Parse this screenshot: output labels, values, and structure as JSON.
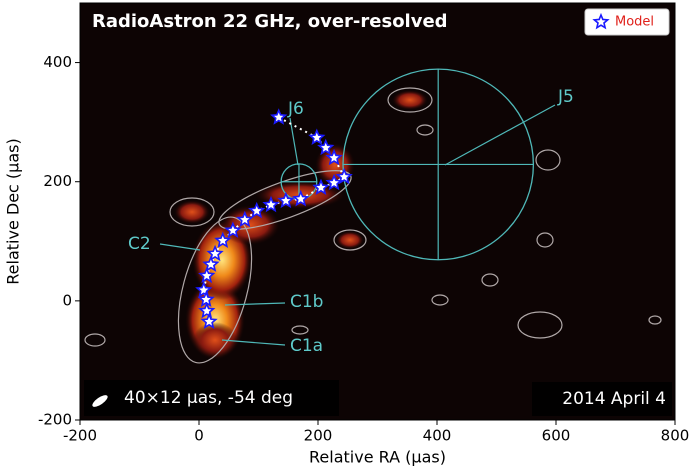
{
  "chart_data": {
    "type": "scatter",
    "title": "RadioAstron 22 GHz, over-resolved",
    "x_label": "Relative RA (μas)",
    "y_label": "Relative Dec (μas)",
    "beam_label": "40×12 μas, -54 deg",
    "date_label": "2014 April 4",
    "xlim": [
      -200,
      800
    ],
    "ylim": [
      -200,
      500
    ],
    "xticks": [
      -200,
      0,
      200,
      400,
      600,
      800
    ],
    "yticks": [
      -200,
      0,
      200,
      400
    ],
    "legend": "upper right",
    "series": [
      {
        "name": "Model",
        "color": "#1a1aff",
        "x": [
          134,
          198,
          213,
          227,
          244,
          227,
          205,
          171,
          146,
          121,
          97,
          77,
          57,
          40,
          27,
          20,
          13,
          8,
          12,
          13,
          17
        ],
        "values": [
          308,
          274,
          257,
          240,
          208,
          198,
          190,
          171,
          168,
          161,
          151,
          136,
          118,
          101,
          79,
          61,
          42,
          18,
          2,
          -17,
          -35
        ]
      }
    ],
    "components": [
      {
        "label": "J5",
        "x": 402,
        "y": 229,
        "r": 160
      },
      {
        "label": "J6",
        "x": 168,
        "y": 200,
        "r": 30
      }
    ],
    "feature_labels": [
      "C2",
      "C1b",
      "C1a"
    ]
  }
}
